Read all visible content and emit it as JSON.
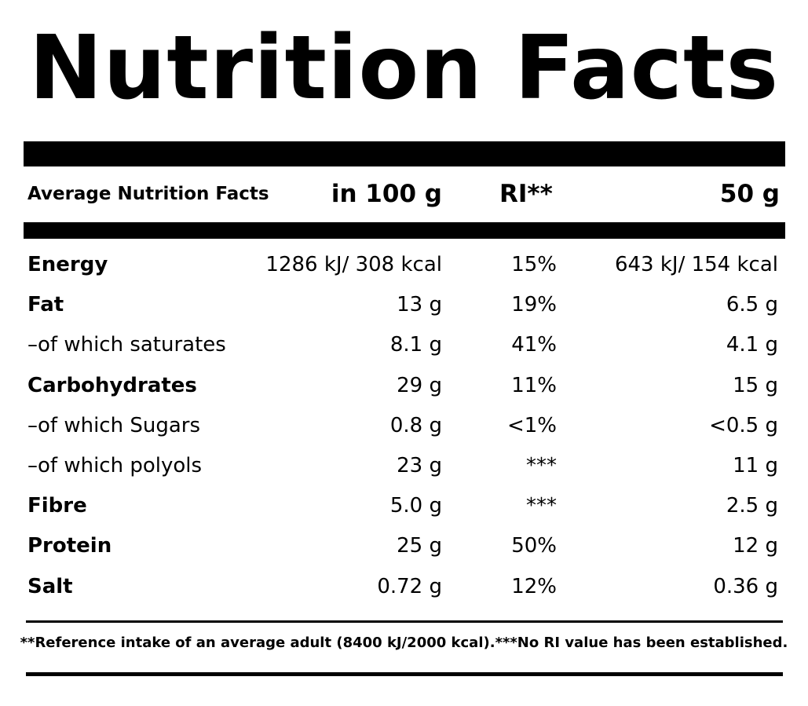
{
  "title": "Nutrition Facts",
  "header": {
    "label": "Average Nutrition Facts",
    "per_100": "in 100 g",
    "ri": "RI**",
    "per_portion": "50 g"
  },
  "rows": [
    {
      "name": "Energy",
      "per_100": "1286 kJ/ 308 kcal",
      "ri": "15%",
      "per_portion": "643 kJ/ 154 kcal"
    },
    {
      "name": "Fat",
      "per_100": "13 g",
      "ri": "19%",
      "per_portion": "6.5 g"
    },
    {
      "name": "–of which saturates",
      "per_100": "8.1 g",
      "ri": "41%",
      "per_portion": "4.1 g"
    },
    {
      "name": "Carbohydrates",
      "per_100": "29 g",
      "ri": "11%",
      "per_portion": "15 g"
    },
    {
      "name": "–of which Sugars",
      "per_100": "0.8 g",
      "ri": "<1%",
      "per_portion": "<0.5 g"
    },
    {
      "name": "–of which polyols",
      "per_100": "23 g",
      "ri": "***",
      "per_portion": "11 g"
    },
    {
      "name": "Fibre",
      "per_100": "5.0 g",
      "ri": "***",
      "per_portion": "2.5 g"
    },
    {
      "name": "Protein",
      "per_100": "25 g",
      "ri": "50%",
      "per_portion": "12 g"
    },
    {
      "name": "Salt",
      "per_100": "0.72 g",
      "ri": "12%",
      "per_portion": "0.36 g"
    }
  ],
  "footnote": "**Reference intake of an average adult (8400 kJ/2000 kcal).***No RI value has been established."
}
